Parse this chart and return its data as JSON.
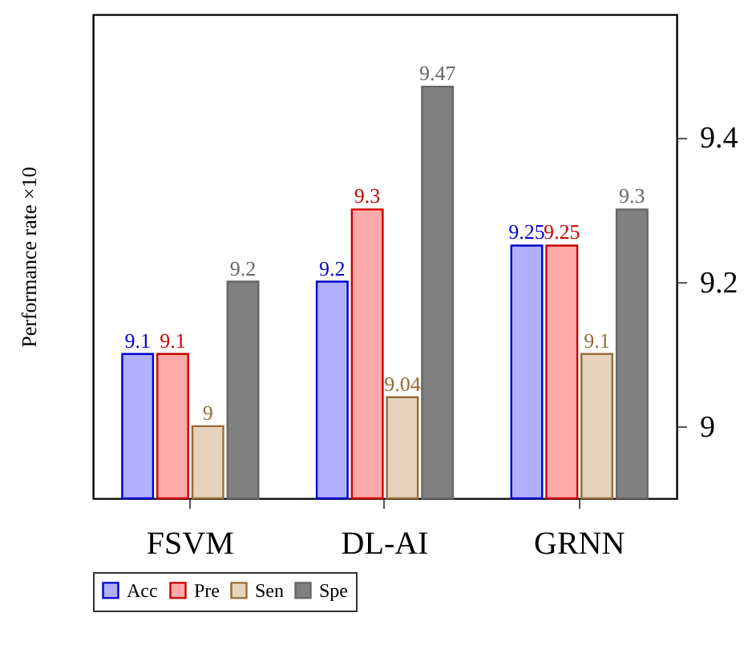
{
  "chart_data": {
    "type": "bar",
    "ylabel": "Performance rate ×10",
    "categories": [
      "FSVM",
      "DL-AI",
      "GRNN"
    ],
    "series": [
      {
        "name": "Acc",
        "color": "#b0b0ff",
        "values": [
          9.1,
          9.2,
          9.25
        ]
      },
      {
        "name": "Pre",
        "color": "#ffaaaa",
        "values": [
          9.1,
          9.3,
          9.25
        ]
      },
      {
        "name": "Sen",
        "color": "#e6d3bc",
        "values": [
          9,
          9.04,
          9.1
        ]
      },
      {
        "name": "Spe",
        "color": "#808080",
        "values": [
          9.2,
          9.47,
          9.3
        ]
      }
    ],
    "ylim": [
      8.9,
      9.57
    ],
    "yticks": [
      9,
      9.2,
      9.4
    ],
    "data_labels": true,
    "grid": false,
    "legend": "bottom"
  }
}
